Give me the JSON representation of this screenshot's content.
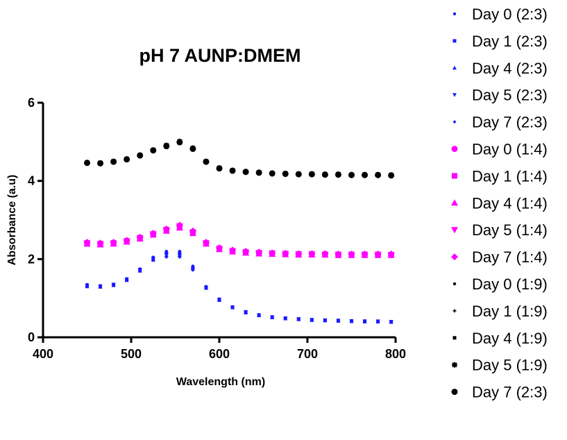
{
  "chart_data": {
    "type": "scatter",
    "title": "pH 7 AUNP:DMEM",
    "xlabel": "Wavelength (nm)",
    "ylabel": "Absorbance (a.u)",
    "xlim": [
      400,
      800
    ],
    "ylim": [
      0,
      6
    ],
    "x_ticks": [
      "400",
      "500",
      "600",
      "700",
      "800"
    ],
    "y_ticks": [
      "0",
      "2",
      "4",
      "6"
    ],
    "grid": false,
    "legend_position": "right",
    "x": [
      450,
      465,
      480,
      495,
      510,
      525,
      540,
      555,
      570,
      585,
      600,
      615,
      630,
      645,
      660,
      675,
      690,
      705,
      720,
      735,
      750,
      765,
      780,
      795
    ],
    "series": [
      {
        "name": "Day 0 (2:3)",
        "color": "#1a1aff",
        "marker": "dot-small",
        "values": [
          1.35,
          1.32,
          1.36,
          1.5,
          1.75,
          2.05,
          2.2,
          2.2,
          1.82,
          1.3,
          0.98,
          0.78,
          0.65,
          0.57,
          0.52,
          0.49,
          0.47,
          0.45,
          0.44,
          0.43,
          0.42,
          0.42,
          0.41,
          0.4
        ]
      },
      {
        "name": "Day 1 (2:3)",
        "color": "#1a1aff",
        "marker": "square-small",
        "values": [
          1.32,
          1.3,
          1.34,
          1.47,
          1.72,
          2.0,
          2.15,
          2.15,
          1.78,
          1.28,
          0.96,
          0.77,
          0.64,
          0.56,
          0.51,
          0.48,
          0.46,
          0.44,
          0.43,
          0.42,
          0.41,
          0.41,
          0.4,
          0.39
        ]
      },
      {
        "name": "Day 4 (2:3)",
        "color": "#1a1aff",
        "marker": "triangle-up-small",
        "values": [
          1.3,
          1.29,
          1.33,
          1.46,
          1.7,
          1.98,
          2.1,
          2.1,
          1.75,
          1.26,
          0.95,
          0.76,
          0.63,
          0.56,
          0.51,
          0.48,
          0.46,
          0.44,
          0.43,
          0.42,
          0.41,
          0.4,
          0.4,
          0.39
        ]
      },
      {
        "name": "Day 5 (2:3)",
        "color": "#1a1aff",
        "marker": "triangle-down-small",
        "values": [
          1.33,
          1.31,
          1.35,
          1.48,
          1.73,
          2.02,
          2.12,
          2.08,
          1.72,
          1.27,
          0.97,
          0.77,
          0.65,
          0.57,
          0.52,
          0.49,
          0.47,
          0.45,
          0.44,
          0.43,
          0.42,
          0.41,
          0.41,
          0.4
        ]
      },
      {
        "name": "Day 7 (2:3)",
        "color": "#1a1aff",
        "marker": "diamond-small",
        "values": [
          1.34,
          1.31,
          1.35,
          1.49,
          1.74,
          2.04,
          2.05,
          2.05,
          1.72,
          1.28,
          0.97,
          0.78,
          0.65,
          0.57,
          0.52,
          0.49,
          0.47,
          0.45,
          0.44,
          0.43,
          0.42,
          0.42,
          0.41,
          0.4
        ]
      },
      {
        "name": "Day 0 (1:4)",
        "color": "#ff00ff",
        "marker": "circle",
        "values": [
          2.42,
          2.4,
          2.42,
          2.47,
          2.55,
          2.65,
          2.76,
          2.85,
          2.7,
          2.42,
          2.28,
          2.22,
          2.19,
          2.17,
          2.15,
          2.14,
          2.13,
          2.13,
          2.13,
          2.12,
          2.12,
          2.12,
          2.12,
          2.12
        ]
      },
      {
        "name": "Day 1 (1:4)",
        "color": "#ff00ff",
        "marker": "square",
        "values": [
          2.4,
          2.38,
          2.4,
          2.45,
          2.53,
          2.63,
          2.74,
          2.82,
          2.68,
          2.4,
          2.26,
          2.2,
          2.17,
          2.15,
          2.14,
          2.13,
          2.12,
          2.12,
          2.12,
          2.11,
          2.11,
          2.11,
          2.11,
          2.11
        ]
      },
      {
        "name": "Day 4 (1:4)",
        "color": "#ff00ff",
        "marker": "triangle-up",
        "values": [
          2.39,
          2.37,
          2.39,
          2.44,
          2.52,
          2.62,
          2.72,
          2.8,
          2.66,
          2.39,
          2.25,
          2.19,
          2.16,
          2.14,
          2.13,
          2.12,
          2.11,
          2.11,
          2.11,
          2.1,
          2.1,
          2.1,
          2.1,
          2.1
        ]
      },
      {
        "name": "Day 5 (1:4)",
        "color": "#ff00ff",
        "marker": "triangle-down",
        "values": [
          2.41,
          2.39,
          2.41,
          2.46,
          2.54,
          2.64,
          2.75,
          2.84,
          2.69,
          2.41,
          2.27,
          2.21,
          2.18,
          2.16,
          2.15,
          2.14,
          2.13,
          2.13,
          2.12,
          2.12,
          2.12,
          2.12,
          2.12,
          2.11
        ]
      },
      {
        "name": "Day 7 (1:4)",
        "color": "#ff00ff",
        "marker": "diamond",
        "values": [
          2.43,
          2.41,
          2.43,
          2.48,
          2.56,
          2.66,
          2.77,
          2.87,
          2.72,
          2.43,
          2.29,
          2.23,
          2.2,
          2.18,
          2.16,
          2.15,
          2.14,
          2.14,
          2.14,
          2.13,
          2.13,
          2.13,
          2.13,
          2.13
        ]
      },
      {
        "name": "Day 0 (1:9)",
        "color": "#000000",
        "marker": "dot-small",
        "values": [
          4.47,
          4.46,
          4.5,
          4.56,
          4.65,
          4.78,
          4.9,
          5.0,
          4.83,
          4.5,
          4.33,
          4.27,
          4.24,
          4.22,
          4.2,
          4.19,
          4.18,
          4.18,
          4.17,
          4.17,
          4.16,
          4.16,
          4.16,
          4.15
        ]
      },
      {
        "name": "Day 1 (1:9)",
        "color": "#000000",
        "marker": "star-small",
        "values": [
          4.46,
          4.45,
          4.49,
          4.55,
          4.64,
          4.77,
          4.88,
          4.98,
          4.82,
          4.49,
          4.32,
          4.26,
          4.23,
          4.21,
          4.19,
          4.18,
          4.17,
          4.17,
          4.16,
          4.16,
          4.15,
          4.15,
          4.15,
          4.14
        ]
      },
      {
        "name": "Day 4 (1:9)",
        "color": "#000000",
        "marker": "square-small",
        "values": [
          4.45,
          4.44,
          4.48,
          4.54,
          4.63,
          4.76,
          4.86,
          4.96,
          4.8,
          4.48,
          4.31,
          4.25,
          4.22,
          4.2,
          4.18,
          4.17,
          4.16,
          4.16,
          4.15,
          4.15,
          4.14,
          4.14,
          4.14,
          4.13
        ]
      },
      {
        "name": "Day 5 (1:9)",
        "color": "#000000",
        "marker": "asterisk",
        "values": [
          4.47,
          4.46,
          4.5,
          4.56,
          4.66,
          4.79,
          4.91,
          5.01,
          4.84,
          4.5,
          4.33,
          4.27,
          4.24,
          4.22,
          4.2,
          4.19,
          4.18,
          4.18,
          4.17,
          4.17,
          4.16,
          4.16,
          4.16,
          4.15
        ]
      },
      {
        "name": "Day 7 (2:3)",
        "color": "#000000",
        "marker": "circle",
        "values": [
          4.46,
          4.45,
          4.49,
          4.55,
          4.65,
          4.78,
          4.89,
          4.99,
          4.82,
          4.49,
          4.32,
          4.26,
          4.23,
          4.21,
          4.19,
          4.18,
          4.17,
          4.17,
          4.16,
          4.16,
          4.15,
          4.15,
          4.15,
          4.14
        ]
      }
    ]
  }
}
